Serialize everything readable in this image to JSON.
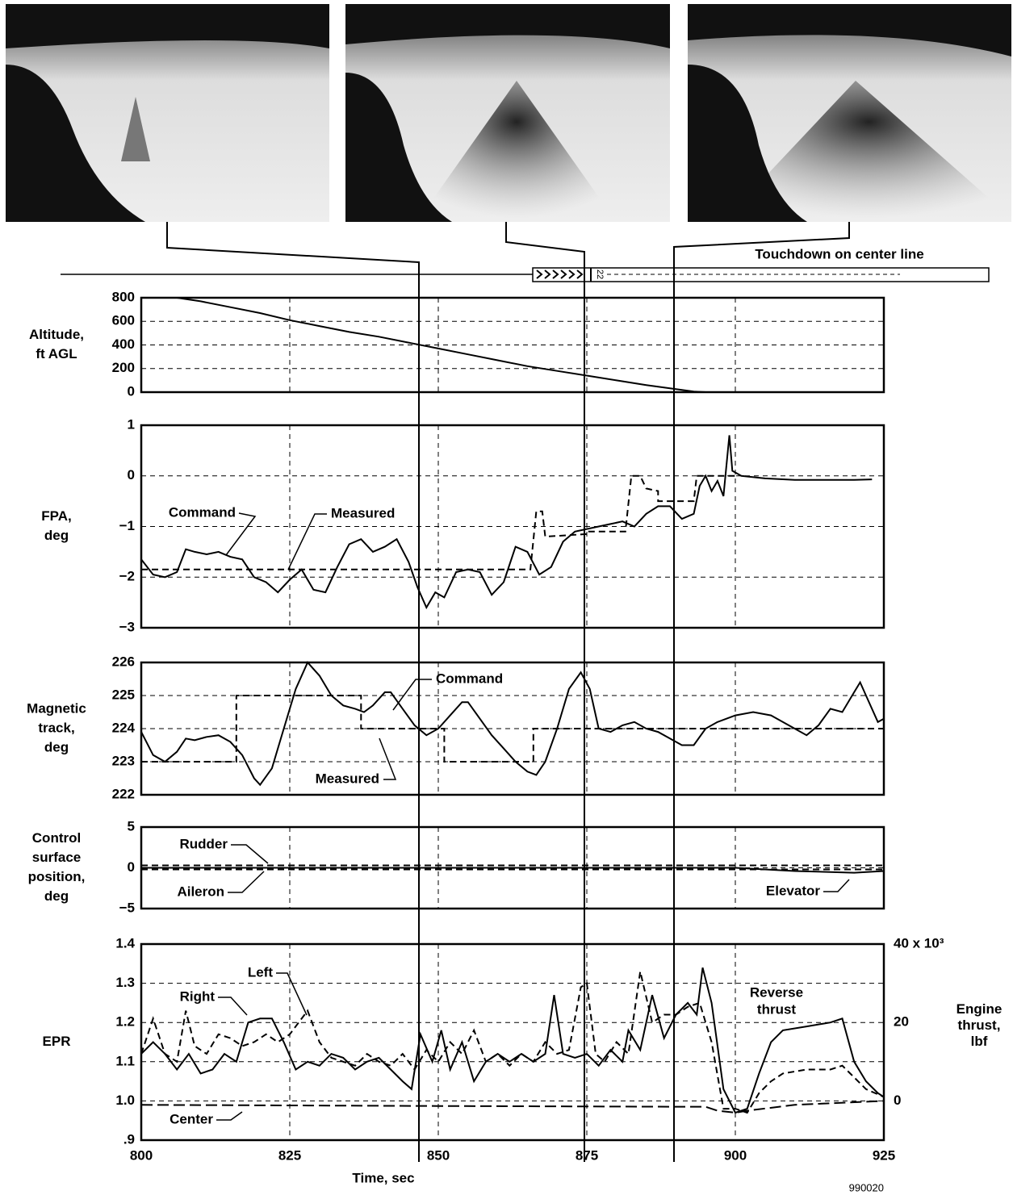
{
  "runway_label": "Touchdown on center line",
  "runway_number": "22",
  "figure_id": "990020",
  "chart_data": [
    {
      "type": "line",
      "ylabel": [
        "Altitude,",
        "ft AGL"
      ],
      "xlim": [
        800,
        925
      ],
      "xticks": [
        825,
        850,
        875,
        900
      ],
      "ylim": [
        0,
        800
      ],
      "yticks": [
        0,
        200,
        400,
        600,
        800
      ],
      "grid": true,
      "color": "#000",
      "x": [
        806,
        810,
        815,
        820,
        825,
        830,
        835,
        840,
        845,
        850,
        855,
        860,
        865,
        870,
        875,
        880,
        885,
        890,
        893,
        895,
        900,
        907
      ],
      "values": [
        800,
        770,
        720,
        670,
        610,
        560,
        510,
        470,
        420,
        370,
        320,
        270,
        220,
        180,
        140,
        100,
        60,
        25,
        5,
        0,
        0,
        0
      ]
    },
    {
      "type": "line",
      "ylabel": [
        "FPA,",
        "deg"
      ],
      "xlim": [
        800,
        925
      ],
      "xticks": [
        825,
        850,
        875,
        900
      ],
      "ylim": [
        -3,
        1
      ],
      "yticks": [
        1,
        0,
        {
          "value": -1,
          "label": "−1"
        },
        {
          "value": -2,
          "label": "−2"
        },
        {
          "value": -3,
          "label": "−3"
        }
      ],
      "grid": true,
      "series": [
        {
          "name": "Command",
          "color": "#000",
          "style": "dashed",
          "x": [
            800,
            865.5,
            866.5,
            867.5,
            868,
            875,
            875,
            881.5,
            882.5,
            884,
            885,
            887,
            887,
            893,
            893.5,
            900
          ],
          "values": [
            -1.85,
            -1.85,
            -0.7,
            -0.7,
            -1.2,
            -1.15,
            -1.1,
            -1.1,
            0,
            0,
            -0.25,
            -0.3,
            -0.5,
            -0.5,
            0,
            0
          ]
        },
        {
          "name": "Measured",
          "color": "#000",
          "style": "solid",
          "x": [
            800,
            802,
            804,
            806,
            807.5,
            809,
            811,
            813,
            815,
            817,
            819,
            821,
            823,
            825,
            827,
            829,
            831,
            833,
            835,
            837,
            839,
            841,
            843,
            845,
            846.5,
            848,
            849.5,
            851,
            853,
            855,
            857,
            859,
            861,
            863,
            865,
            867,
            869,
            871,
            873,
            875,
            877,
            879,
            881,
            883,
            885,
            887,
            889,
            891,
            893,
            894,
            895,
            896,
            897,
            898,
            899,
            899.5,
            901,
            905,
            910,
            915,
            920,
            923
          ],
          "values": [
            -1.65,
            -1.95,
            -2,
            -1.9,
            -1.45,
            -1.5,
            -1.55,
            -1.5,
            -1.6,
            -1.65,
            -2,
            -2.1,
            -2.3,
            -2.05,
            -1.85,
            -2.25,
            -2.3,
            -1.8,
            -1.35,
            -1.25,
            -1.5,
            -1.4,
            -1.25,
            -1.7,
            -2.2,
            -2.6,
            -2.3,
            -2.4,
            -1.9,
            -1.85,
            -1.9,
            -2.35,
            -2.1,
            -1.4,
            -1.5,
            -1.95,
            -1.8,
            -1.3,
            -1.1,
            -1.05,
            -1,
            -0.95,
            -0.9,
            -1,
            -0.75,
            -0.6,
            -0.6,
            -0.85,
            -0.75,
            -0.2,
            0,
            -0.3,
            -0.1,
            -0.4,
            0.8,
            0.1,
            0,
            -0.05,
            -0.08,
            -0.08,
            -0.08,
            -0.07
          ]
        }
      ]
    },
    {
      "type": "line",
      "ylabel": [
        "Magnetic",
        "track,",
        "deg"
      ],
      "xlim": [
        800,
        925
      ],
      "xticks": [
        825,
        850,
        875,
        900
      ],
      "ylim": [
        222,
        226
      ],
      "yticks": [
        226,
        225,
        224,
        223,
        222
      ],
      "grid": true,
      "series": [
        {
          "name": "Command",
          "color": "#000",
          "style": "dashed",
          "x": [
            800,
            816,
            816,
            837,
            837,
            851,
            851,
            866,
            866,
            925
          ],
          "values": [
            223,
            223,
            225,
            225,
            224,
            224,
            223,
            223,
            224,
            224
          ]
        },
        {
          "name": "Measured",
          "color": "#000",
          "style": "solid",
          "x": [
            800,
            802,
            804,
            806,
            807.5,
            809,
            811,
            813,
            815,
            817,
            819,
            820,
            822,
            824,
            826,
            828,
            830,
            832,
            834,
            836,
            837.5,
            839,
            841,
            842,
            844,
            846,
            848,
            850,
            852,
            854,
            855,
            857,
            859,
            861,
            863,
            865,
            866.5,
            868,
            870,
            872,
            874,
            875.5,
            877,
            879,
            881,
            883,
            885,
            887,
            889,
            891,
            893,
            895,
            897,
            900,
            903,
            906,
            909,
            912,
            914,
            916,
            918,
            920,
            921,
            922,
            924,
            925
          ],
          "values": [
            223.9,
            223.2,
            223,
            223.3,
            223.7,
            223.65,
            223.75,
            223.8,
            223.6,
            223.2,
            222.5,
            222.3,
            222.8,
            224,
            225.2,
            226,
            225.6,
            225,
            224.7,
            224.6,
            224.5,
            224.7,
            225.1,
            225.1,
            224.6,
            224.1,
            223.8,
            224,
            224.4,
            224.8,
            224.8,
            224.3,
            223.8,
            223.4,
            223,
            222.7,
            222.6,
            223,
            224,
            225.2,
            225.7,
            225.2,
            224,
            223.9,
            224.1,
            224.2,
            224,
            223.9,
            223.7,
            223.5,
            223.5,
            224,
            224.2,
            224.4,
            224.5,
            224.4,
            224.1,
            223.8,
            224.1,
            224.6,
            224.5,
            225.1,
            225.4,
            225,
            224.2,
            224.3
          ]
        }
      ]
    },
    {
      "type": "line",
      "ylabel": [
        "Control",
        "surface",
        "position,",
        "deg"
      ],
      "xlim": [
        800,
        925
      ],
      "xticks": [
        825,
        850,
        875,
        900
      ],
      "ylim": [
        -5,
        5
      ],
      "yticks": [
        5,
        0,
        {
          "value": -5,
          "label": "−5"
        }
      ],
      "grid": true,
      "series": [
        {
          "name": "Rudder",
          "color": "#000",
          "style": "dashed",
          "x": [
            800,
            900,
            925
          ],
          "values": [
            0.3,
            0.3,
            0.3
          ]
        },
        {
          "name": "Aileron",
          "color": "#000",
          "style": "dashed",
          "x": [
            800,
            900,
            925
          ],
          "values": [
            -0.2,
            -0.2,
            -0.2
          ]
        },
        {
          "name": "Elevator",
          "color": "#000",
          "style": "solid",
          "x": [
            800,
            900,
            910,
            920,
            925
          ],
          "values": [
            0,
            0,
            -0.4,
            -0.6,
            -0.4
          ]
        }
      ]
    },
    {
      "type": "line",
      "ylabel": [
        "EPR"
      ],
      "y2label": [
        "Engine",
        "thrust,",
        "lbf"
      ],
      "xlabel": "Time, sec",
      "xlim": [
        800,
        925
      ],
      "xticks": [
        800,
        825,
        850,
        875,
        900,
        925
      ],
      "ylim": [
        0.9,
        1.4
      ],
      "yticks": [
        1.4,
        1.3,
        1.2,
        1.1,
        {
          "value": 1,
          "label": "1.0"
        },
        {
          "value": 0.9,
          "label": ".9"
        }
      ],
      "y2lim": [
        -10,
        40
      ],
      "y2ticks": [
        0,
        20,
        {
          "value": 40,
          "label": "40 x 10³"
        }
      ],
      "grid": true,
      "annotation": [
        "Reverse",
        "thrust"
      ],
      "series": [
        {
          "name": "Left",
          "color": "#000",
          "style": "dashed",
          "x": [
            800,
            802,
            804,
            806,
            807.5,
            809,
            811,
            813,
            815,
            817,
            819,
            821,
            823,
            825,
            826.5,
            828,
            830,
            832,
            834,
            836,
            838,
            840,
            842,
            844,
            846,
            848,
            850,
            852,
            854,
            856,
            858,
            860,
            862,
            864,
            866,
            868,
            870,
            872,
            874,
            875,
            876.5,
            878,
            880,
            882,
            884,
            886,
            888,
            890,
            892,
            894,
            896,
            898,
            900,
            902,
            904,
            906,
            908,
            912,
            916,
            918,
            920,
            922,
            925
          ],
          "values": [
            1.12,
            1.21,
            1.12,
            1.1,
            1.23,
            1.14,
            1.12,
            1.17,
            1.16,
            1.14,
            1.15,
            1.17,
            1.15,
            1.17,
            1.2,
            1.23,
            1.15,
            1.11,
            1.1,
            1.09,
            1.12,
            1.1,
            1.09,
            1.12,
            1.08,
            1.13,
            1.1,
            1.15,
            1.12,
            1.18,
            1.1,
            1.12,
            1.09,
            1.12,
            1.1,
            1.15,
            1.12,
            1.13,
            1.29,
            1.3,
            1.12,
            1.1,
            1.15,
            1.12,
            1.33,
            1.2,
            1.22,
            1.22,
            1.24,
            1.25,
            1.15,
            0.98,
            0.98,
            0.97,
            1.02,
            1.05,
            1.07,
            1.08,
            1.08,
            1.09,
            1.06,
            1.03,
            1.01
          ]
        },
        {
          "name": "Right",
          "color": "#000",
          "style": "solid",
          "x": [
            800,
            802,
            804,
            806,
            808,
            810,
            812,
            814,
            816,
            818,
            820,
            822,
            824,
            826,
            828,
            830,
            832,
            834,
            836,
            838,
            840,
            842,
            844,
            845.5,
            847,
            849,
            850.5,
            852,
            854,
            856,
            858,
            860,
            862,
            864,
            866,
            868,
            869.5,
            871,
            873,
            875,
            877,
            879,
            881,
            882,
            884,
            886,
            888,
            890,
            892,
            893.5,
            894.5,
            896,
            898,
            900,
            902,
            904,
            906,
            908,
            912,
            916,
            918,
            920,
            922,
            924,
            925
          ],
          "values": [
            1.12,
            1.15,
            1.12,
            1.08,
            1.12,
            1.07,
            1.08,
            1.12,
            1.1,
            1.2,
            1.21,
            1.21,
            1.15,
            1.08,
            1.1,
            1.09,
            1.12,
            1.11,
            1.08,
            1.1,
            1.11,
            1.08,
            1.05,
            1.03,
            1.17,
            1.1,
            1.18,
            1.08,
            1.15,
            1.05,
            1.1,
            1.12,
            1.1,
            1.12,
            1.1,
            1.12,
            1.27,
            1.12,
            1.11,
            1.12,
            1.09,
            1.13,
            1.1,
            1.18,
            1.13,
            1.27,
            1.16,
            1.22,
            1.25,
            1.22,
            1.34,
            1.25,
            1.03,
            0.97,
            0.98,
            1.07,
            1.15,
            1.18,
            1.19,
            1.2,
            1.21,
            1.1,
            1.05,
            1.02,
            1.01
          ]
        },
        {
          "name": "Center",
          "color": "#000",
          "style": "longdash",
          "x": [
            800,
            850,
            895,
            897,
            900,
            902,
            910,
            925
          ],
          "values": [
            0.99,
            0.987,
            0.985,
            0.975,
            0.97,
            0.975,
            0.99,
            1
          ]
        }
      ]
    }
  ]
}
